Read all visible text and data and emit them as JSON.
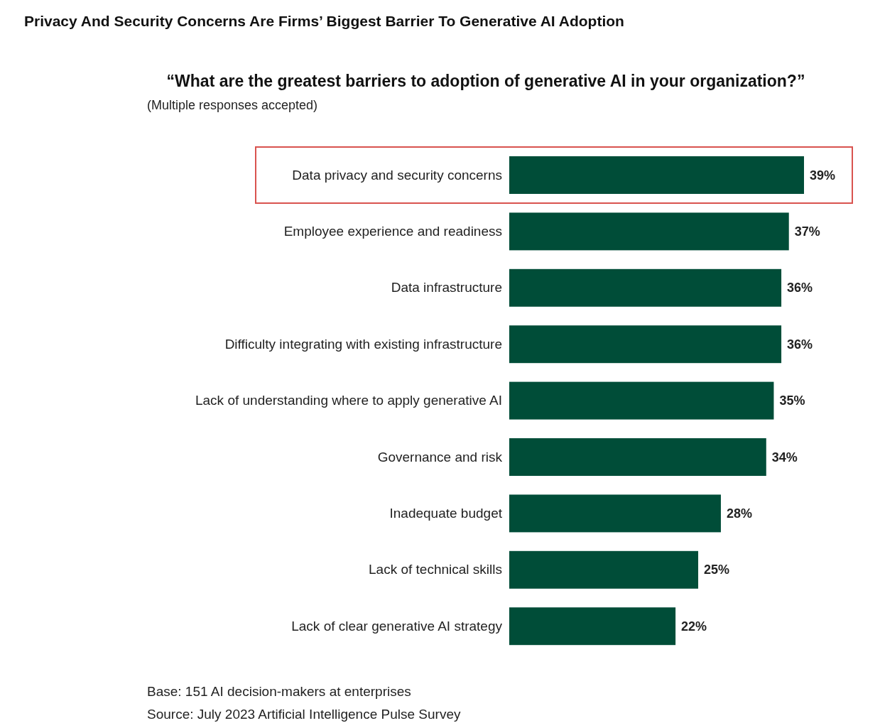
{
  "chart_data": {
    "type": "bar",
    "orientation": "horizontal",
    "title": "Privacy And Security Concerns Are Firms’ Biggest Barrier To Generative AI Adoption",
    "subtitle": "“What are the greatest barriers to adoption of generative AI in your organization?”",
    "annotations": [
      "(Multiple responses accepted)",
      "Base: 151 AI decision-makers at enterprises",
      "Source: July 2023 Artificial Intelligence Pulse Survey"
    ],
    "categories": [
      "Data privacy and security concerns",
      "Employee experience and readiness",
      "Data infrastructure",
      "Difficulty integrating with existing infrastructure",
      "Lack of understanding where to apply generative AI",
      "Governance and risk",
      "Inadequate budget",
      "Lack of technical skills",
      "Lack of clear generative AI strategy"
    ],
    "values": [
      39,
      37,
      36,
      36,
      35,
      34,
      28,
      25,
      22
    ],
    "value_labels": [
      "39%",
      "37%",
      "36%",
      "36%",
      "35%",
      "34%",
      "28%",
      "25%",
      "22%"
    ],
    "color": "#004d38"
  }
}
